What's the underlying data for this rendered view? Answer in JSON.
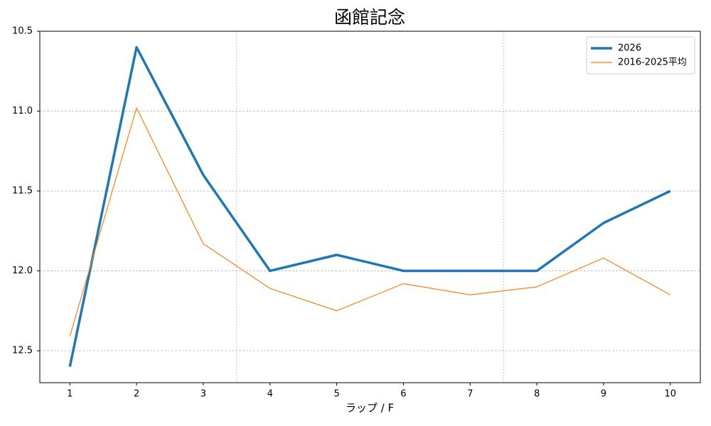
{
  "chart_data": {
    "type": "line",
    "title": "函館記念",
    "xlabel": "ラップ / F",
    "x": [
      1,
      2,
      3,
      4,
      5,
      6,
      7,
      8,
      9,
      10
    ],
    "series": [
      {
        "name": "2026",
        "color": "#1f77b4",
        "linewidth": 3.5,
        "values": [
          12.6,
          10.6,
          11.4,
          12.0,
          11.9,
          12.0,
          12.0,
          12.0,
          11.7,
          11.5
        ]
      },
      {
        "name": "2016-2025平均",
        "color": "#ff7f0e",
        "linewidth": 1.2,
        "values": [
          12.41,
          10.98,
          11.83,
          12.11,
          12.25,
          12.08,
          12.15,
          12.1,
          11.92,
          12.15
        ]
      }
    ],
    "xlim": [
      0.55,
      10.45
    ],
    "xticks": [
      1,
      2,
      3,
      4,
      5,
      6,
      7,
      8,
      9,
      10
    ],
    "ylim": [
      12.7,
      10.5
    ],
    "yticks": [
      10.5,
      {
        "value": 11,
        "label": "11.0"
      },
      11.5,
      {
        "value": 12,
        "label": "12.0"
      },
      12.5
    ],
    "grid": true,
    "vlines": [
      3.5,
      7.5
    ],
    "legend": "upper-right"
  }
}
